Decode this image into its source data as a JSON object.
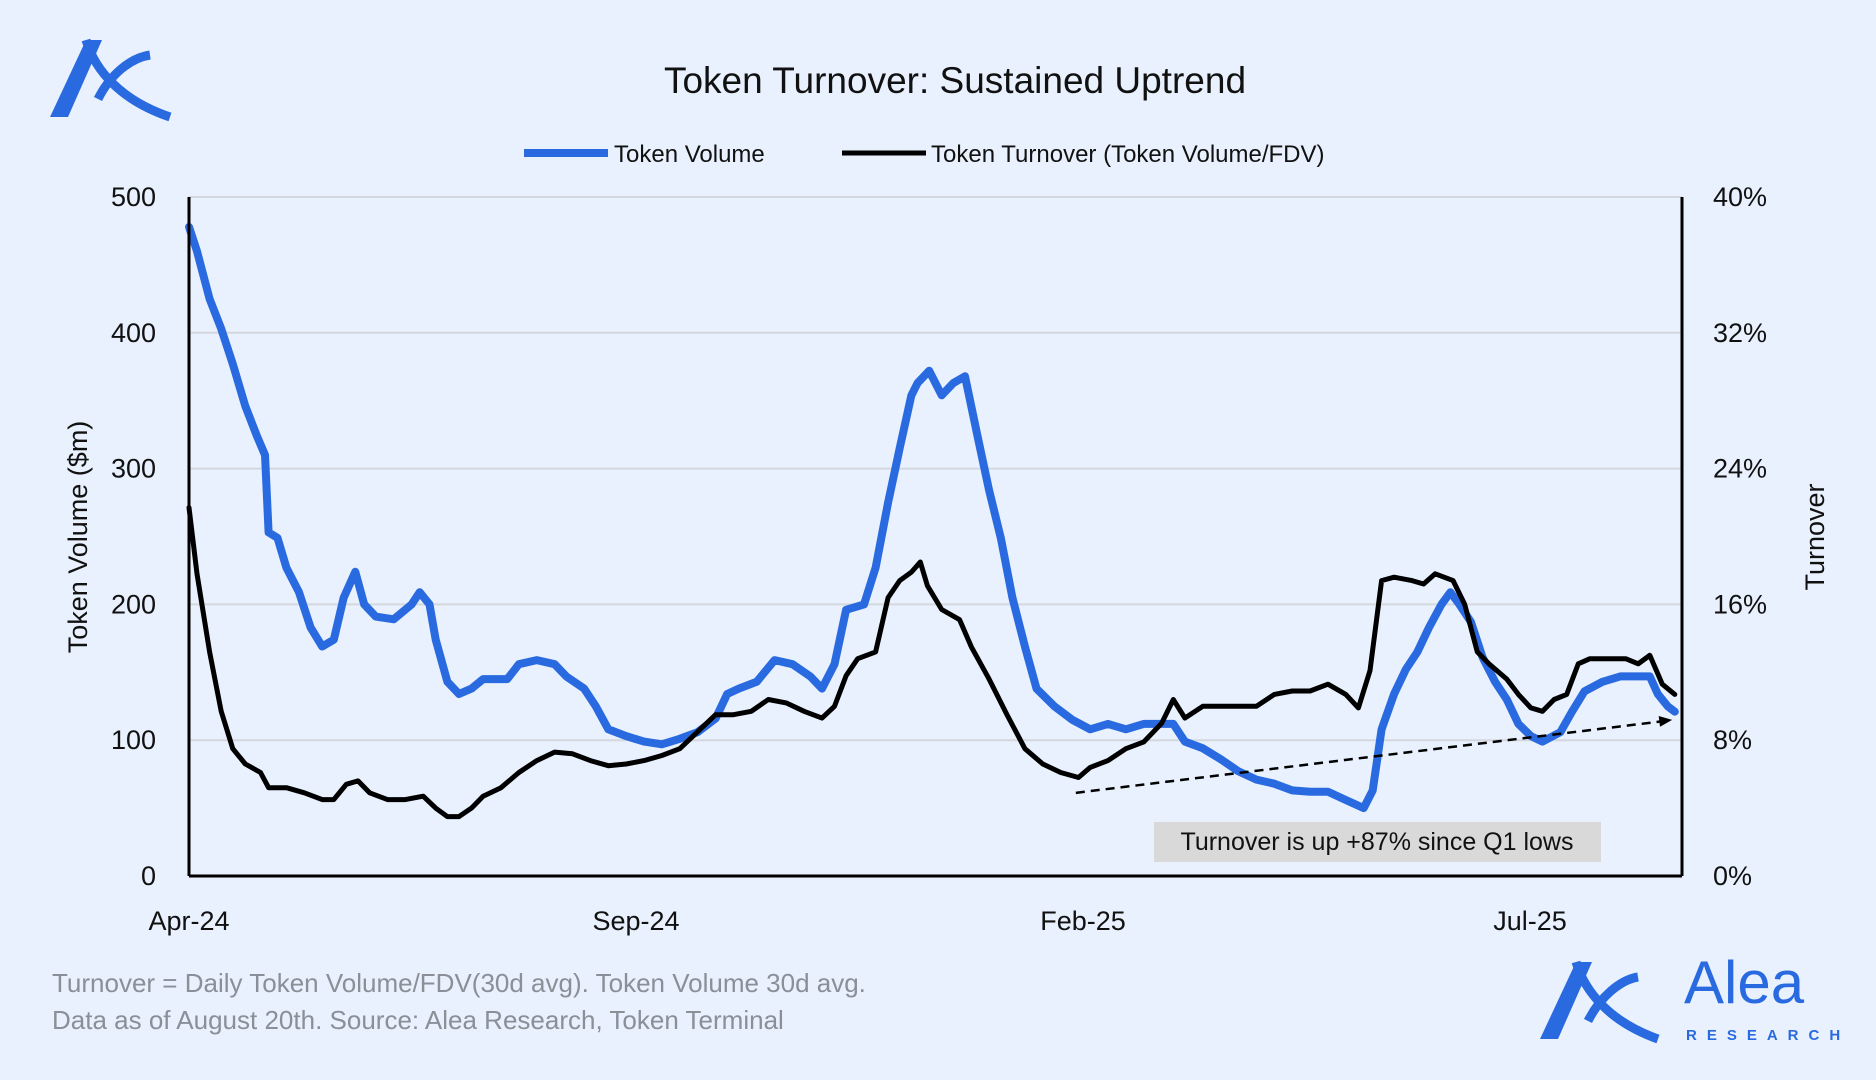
{
  "chart_data": {
    "type": "line",
    "title": "Token Turnover: Sustained Uptrend",
    "xlabel": "",
    "ylabel": "Token Volume ($m)",
    "y2label": "Turnover",
    "x_unit": "months since Apr-24",
    "xlim": [
      0,
      16.6
    ],
    "ylim": [
      0,
      500
    ],
    "y2lim": [
      0,
      40
    ],
    "x_ticks": [
      {
        "x": 0,
        "label": "Apr-24"
      },
      {
        "x": 5,
        "label": "Sep-24"
      },
      {
        "x": 10,
        "label": "Feb-25"
      },
      {
        "x": 15,
        "label": "Jul-25"
      }
    ],
    "y_ticks": [
      "0",
      "100",
      "200",
      "300",
      "400",
      "500"
    ],
    "y2_ticks": [
      "0%",
      "8%",
      "16%",
      "24%",
      "32%",
      "40%"
    ],
    "grid": true,
    "legend_position": "top-center",
    "colors": {
      "volume": "#2a6ae0",
      "turnover": "#000000",
      "background": "#e8f1fd"
    },
    "series": [
      {
        "name": "Token Volume",
        "axis": "left",
        "points": [
          [
            0,
            478
          ],
          [
            0.09,
            460
          ],
          [
            0.23,
            425
          ],
          [
            0.36,
            403
          ],
          [
            0.49,
            377
          ],
          [
            0.63,
            346
          ],
          [
            0.76,
            324
          ],
          [
            0.85,
            310
          ],
          [
            0.89,
            253
          ],
          [
            0.99,
            249
          ],
          [
            1.09,
            227
          ],
          [
            1.23,
            209
          ],
          [
            1.36,
            183
          ],
          [
            1.49,
            169
          ],
          [
            1.62,
            174
          ],
          [
            1.73,
            205
          ],
          [
            1.86,
            224
          ],
          [
            1.96,
            200
          ],
          [
            2.09,
            191
          ],
          [
            2.29,
            189
          ],
          [
            2.49,
            200
          ],
          [
            2.58,
            209
          ],
          [
            2.69,
            200
          ],
          [
            2.76,
            174
          ],
          [
            2.89,
            143
          ],
          [
            3.02,
            134
          ],
          [
            3.16,
            138
          ],
          [
            3.29,
            145
          ],
          [
            3.42,
            145
          ],
          [
            3.56,
            145
          ],
          [
            3.69,
            156
          ],
          [
            3.89,
            159
          ],
          [
            4.09,
            156
          ],
          [
            4.22,
            147
          ],
          [
            4.42,
            138
          ],
          [
            4.55,
            125
          ],
          [
            4.69,
            108
          ],
          [
            4.89,
            103
          ],
          [
            5.09,
            99
          ],
          [
            5.29,
            97
          ],
          [
            5.49,
            101
          ],
          [
            5.69,
            106
          ],
          [
            5.89,
            116
          ],
          [
            6.02,
            134
          ],
          [
            6.15,
            138
          ],
          [
            6.35,
            143
          ],
          [
            6.55,
            159
          ],
          [
            6.75,
            156
          ],
          [
            6.95,
            147
          ],
          [
            7.08,
            138
          ],
          [
            7.22,
            156
          ],
          [
            7.35,
            196
          ],
          [
            7.55,
            200
          ],
          [
            7.68,
            227
          ],
          [
            7.82,
            275
          ],
          [
            7.95,
            315
          ],
          [
            8.08,
            354
          ],
          [
            8.15,
            363
          ],
          [
            8.28,
            372
          ],
          [
            8.42,
            354
          ],
          [
            8.55,
            363
          ],
          [
            8.68,
            368
          ],
          [
            8.82,
            324
          ],
          [
            8.95,
            284
          ],
          [
            9.08,
            249
          ],
          [
            9.21,
            205
          ],
          [
            9.35,
            169
          ],
          [
            9.48,
            138
          ],
          [
            9.68,
            125
          ],
          [
            9.88,
            115
          ],
          [
            10.08,
            108
          ],
          [
            10.28,
            112
          ],
          [
            10.48,
            108
          ],
          [
            10.68,
            112
          ],
          [
            10.88,
            112
          ],
          [
            11.01,
            112
          ],
          [
            11.14,
            99
          ],
          [
            11.34,
            94
          ],
          [
            11.54,
            86
          ],
          [
            11.74,
            77
          ],
          [
            11.94,
            71
          ],
          [
            12.14,
            68
          ],
          [
            12.34,
            63
          ],
          [
            12.54,
            62
          ],
          [
            12.74,
            62
          ],
          [
            12.94,
            56
          ],
          [
            13.14,
            50
          ],
          [
            13.24,
            63
          ],
          [
            13.34,
            108
          ],
          [
            13.48,
            134
          ],
          [
            13.61,
            152
          ],
          [
            13.74,
            165
          ],
          [
            13.87,
            183
          ],
          [
            14.01,
            200
          ],
          [
            14.11,
            209
          ],
          [
            14.21,
            200
          ],
          [
            14.34,
            187
          ],
          [
            14.47,
            161
          ],
          [
            14.61,
            143
          ],
          [
            14.74,
            130
          ],
          [
            14.87,
            112
          ],
          [
            15.01,
            103
          ],
          [
            15.14,
            99
          ],
          [
            15.34,
            106
          ],
          [
            15.47,
            121
          ],
          [
            15.61,
            136
          ],
          [
            15.81,
            143
          ],
          [
            16.01,
            147
          ],
          [
            16.21,
            147
          ],
          [
            16.34,
            147
          ],
          [
            16.43,
            134
          ],
          [
            16.54,
            125
          ],
          [
            16.62,
            121
          ]
        ]
      },
      {
        "name": "Token Turnover (Token Volume/FDV)",
        "axis": "right",
        "points": [
          [
            0,
            21.7
          ],
          [
            0.09,
            17.8
          ],
          [
            0.23,
            13.2
          ],
          [
            0.36,
            9.7
          ],
          [
            0.49,
            7.5
          ],
          [
            0.63,
            6.6
          ],
          [
            0.8,
            6.1
          ],
          [
            0.89,
            5.2
          ],
          [
            1.09,
            5.2
          ],
          [
            1.29,
            4.9
          ],
          [
            1.49,
            4.5
          ],
          [
            1.62,
            4.5
          ],
          [
            1.76,
            5.4
          ],
          [
            1.89,
            5.6
          ],
          [
            2.02,
            4.9
          ],
          [
            2.22,
            4.5
          ],
          [
            2.42,
            4.5
          ],
          [
            2.62,
            4.7
          ],
          [
            2.76,
            4.0
          ],
          [
            2.89,
            3.5
          ],
          [
            3.02,
            3.5
          ],
          [
            3.16,
            4.0
          ],
          [
            3.29,
            4.7
          ],
          [
            3.49,
            5.2
          ],
          [
            3.69,
            6.1
          ],
          [
            3.89,
            6.8
          ],
          [
            4.09,
            7.3
          ],
          [
            4.29,
            7.2
          ],
          [
            4.49,
            6.8
          ],
          [
            4.69,
            6.5
          ],
          [
            4.89,
            6.6
          ],
          [
            5.09,
            6.8
          ],
          [
            5.29,
            7.1
          ],
          [
            5.49,
            7.5
          ],
          [
            5.69,
            8.5
          ],
          [
            5.89,
            9.5
          ],
          [
            6.09,
            9.5
          ],
          [
            6.29,
            9.7
          ],
          [
            6.48,
            10.4
          ],
          [
            6.68,
            10.2
          ],
          [
            6.88,
            9.7
          ],
          [
            7.08,
            9.3
          ],
          [
            7.22,
            10.0
          ],
          [
            7.35,
            11.8
          ],
          [
            7.48,
            12.8
          ],
          [
            7.68,
            13.2
          ],
          [
            7.82,
            16.4
          ],
          [
            7.95,
            17.4
          ],
          [
            8.08,
            17.9
          ],
          [
            8.18,
            18.5
          ],
          [
            8.26,
            17.1
          ],
          [
            8.42,
            15.7
          ],
          [
            8.62,
            15.1
          ],
          [
            8.75,
            13.5
          ],
          [
            8.95,
            11.6
          ],
          [
            9.15,
            9.5
          ],
          [
            9.35,
            7.5
          ],
          [
            9.55,
            6.6
          ],
          [
            9.75,
            6.1
          ],
          [
            9.95,
            5.8
          ],
          [
            10.08,
            6.4
          ],
          [
            10.28,
            6.8
          ],
          [
            10.48,
            7.5
          ],
          [
            10.68,
            7.9
          ],
          [
            10.88,
            9.0
          ],
          [
            11.01,
            10.4
          ],
          [
            11.14,
            9.3
          ],
          [
            11.34,
            10.0
          ],
          [
            11.54,
            10.0
          ],
          [
            11.74,
            10.0
          ],
          [
            11.94,
            10.0
          ],
          [
            12.14,
            10.7
          ],
          [
            12.34,
            10.9
          ],
          [
            12.54,
            10.9
          ],
          [
            12.74,
            11.3
          ],
          [
            12.94,
            10.7
          ],
          [
            13.08,
            9.9
          ],
          [
            13.21,
            12.1
          ],
          [
            13.34,
            17.4
          ],
          [
            13.48,
            17.6
          ],
          [
            13.68,
            17.4
          ],
          [
            13.81,
            17.2
          ],
          [
            13.94,
            17.8
          ],
          [
            14.14,
            17.4
          ],
          [
            14.27,
            16.0
          ],
          [
            14.41,
            13.2
          ],
          [
            14.54,
            12.5
          ],
          [
            14.74,
            11.6
          ],
          [
            14.87,
            10.7
          ],
          [
            15.01,
            9.9
          ],
          [
            15.14,
            9.7
          ],
          [
            15.27,
            10.4
          ],
          [
            15.41,
            10.7
          ],
          [
            15.54,
            12.5
          ],
          [
            15.67,
            12.8
          ],
          [
            15.87,
            12.8
          ],
          [
            16.07,
            12.8
          ],
          [
            16.21,
            12.5
          ],
          [
            16.34,
            13.0
          ],
          [
            16.48,
            11.3
          ],
          [
            16.62,
            10.7
          ]
        ]
      }
    ],
    "trend_arrow": {
      "from": [
        9.92,
        4.9
      ],
      "to": [
        16.59,
        9.2
      ],
      "axis": "right",
      "style": "dashed"
    },
    "annotation": "Turnover is up +87% since Q1 lows"
  },
  "footer": {
    "line1": "Turnover = Daily Token Volume/FDV(30d avg). Token Volume 30d avg.",
    "line2": "Data as of August 20th. Source: Alea Research, Token Terminal"
  },
  "brand": {
    "name": "Alea",
    "sub": "RESEARCH"
  }
}
